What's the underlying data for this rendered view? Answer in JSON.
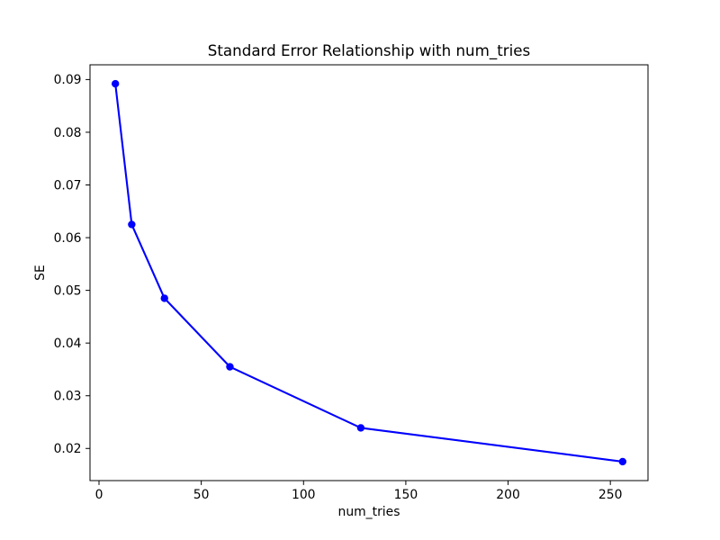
{
  "figure": {
    "background": "#ffffff",
    "axes_background": "#ffffff",
    "spine_color": "#000000",
    "text_color": "#000000"
  },
  "chart_data": {
    "type": "line",
    "title": "Standard Error Relationship with num_tries",
    "xlabel": "num_tries",
    "ylabel": "SE",
    "x": [
      8,
      16,
      32,
      64,
      128,
      256
    ],
    "y": [
      0.0892,
      0.0625,
      0.0485,
      0.0355,
      0.0239,
      0.0175
    ],
    "xlim": [
      -4.4,
      268.4
    ],
    "ylim": [
      0.0139,
      0.0928
    ],
    "xticks": {
      "values": [
        0,
        50,
        100,
        150,
        200,
        250
      ],
      "labels": [
        "0",
        "50",
        "100",
        "150",
        "200",
        "250"
      ]
    },
    "yticks": {
      "values": [
        0.02,
        0.03,
        0.04,
        0.05,
        0.06,
        0.07,
        0.08,
        0.09
      ],
      "labels": [
        "0.02",
        "0.03",
        "0.04",
        "0.05",
        "0.06",
        "0.07",
        "0.08",
        "0.09"
      ]
    },
    "line_color": "#0000ff",
    "marker": "circle",
    "grid": false,
    "legend": null
  }
}
